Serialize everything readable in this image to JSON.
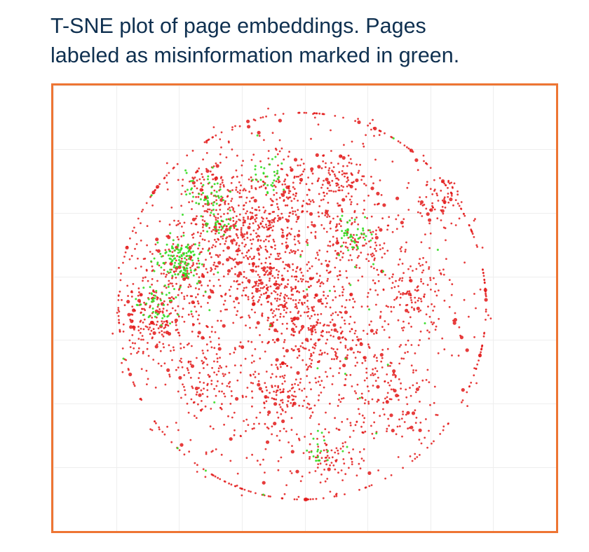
{
  "caption": {
    "line1": "T-SNE plot of page embeddings. Pages",
    "line2": "labeled as misinformation marked in green."
  },
  "colors": {
    "caption_text": "#0f3050",
    "frame_border": "#ee7533",
    "gridline": "#eeeeee",
    "other_pages": "#e31a1a",
    "misinformation_pages": "#33dd22"
  },
  "chart_data": {
    "type": "scatter",
    "title": "",
    "xlabel": "",
    "ylabel": "",
    "xlim": [
      -50,
      50
    ],
    "ylim": [
      -50,
      50
    ],
    "grid": true,
    "legend": "none",
    "tick_labels": "none",
    "series": [
      {
        "color": "#e31a1a",
        "points_shown": 3000,
        "clusters": [
          {
            "cx": 0,
            "cy": 0,
            "sd": 26,
            "weight": 0.42
          },
          {
            "cx": -10,
            "cy": 20,
            "sd": 6,
            "weight": 0.08
          },
          {
            "cx": -37,
            "cy": -3,
            "sd": 5,
            "weight": 0.06
          },
          {
            "cx": -31,
            "cy": 9,
            "sd": 5,
            "weight": 0.05
          },
          {
            "cx": -4,
            "cy": 3,
            "sd": 5,
            "weight": 0.05
          },
          {
            "cx": -20,
            "cy": 18,
            "sd": 4,
            "weight": 0.03
          },
          {
            "cx": 10,
            "cy": 29,
            "sd": 4,
            "weight": 0.03
          },
          {
            "cx": -24,
            "cy": -16,
            "sd": 4,
            "weight": 0.03
          },
          {
            "cx": 4,
            "cy": -7,
            "sd": 5,
            "weight": 0.04
          },
          {
            "cx": 13,
            "cy": 15,
            "sd": 4,
            "weight": 0.03
          },
          {
            "cx": -22,
            "cy": 28,
            "sd": 4,
            "weight": 0.03
          },
          {
            "cx": -7,
            "cy": -22,
            "sd": 4,
            "weight": 0.03
          },
          {
            "cx": 6,
            "cy": -36,
            "sd": 3,
            "weight": 0.02
          },
          {
            "cx": 20,
            "cy": -20,
            "sd": 6,
            "weight": 0.04
          },
          {
            "cx": 28,
            "cy": 5,
            "sd": 6,
            "weight": 0.03
          },
          {
            "cx": 35,
            "cy": 25,
            "sd": 3,
            "weight": 0.02
          },
          {
            "cx": -2,
            "cy": 27,
            "sd": 3,
            "weight": 0.02
          },
          {
            "cx": -12,
            "cy": 5,
            "sd": 4,
            "weight": 0.03
          }
        ]
      },
      {
        "color": "#33dd22",
        "points_shown": 360,
        "clusters": [
          {
            "cx": -31,
            "cy": 11,
            "sd": 3,
            "weight": 0.34
          },
          {
            "cx": -37,
            "cy": 0,
            "sd": 2.5,
            "weight": 0.12
          },
          {
            "cx": -24,
            "cy": 27,
            "sd": 2.5,
            "weight": 0.12
          },
          {
            "cx": -21,
            "cy": 20,
            "sd": 2,
            "weight": 0.08
          },
          {
            "cx": -8,
            "cy": 31,
            "sd": 2,
            "weight": 0.08
          },
          {
            "cx": 13,
            "cy": 17,
            "sd": 2.5,
            "weight": 0.12
          },
          {
            "cx": 5,
            "cy": -34,
            "sd": 2,
            "weight": 0.05
          },
          {
            "cx": 0,
            "cy": 0,
            "sd": 25,
            "weight": 0.09
          }
        ]
      }
    ]
  }
}
